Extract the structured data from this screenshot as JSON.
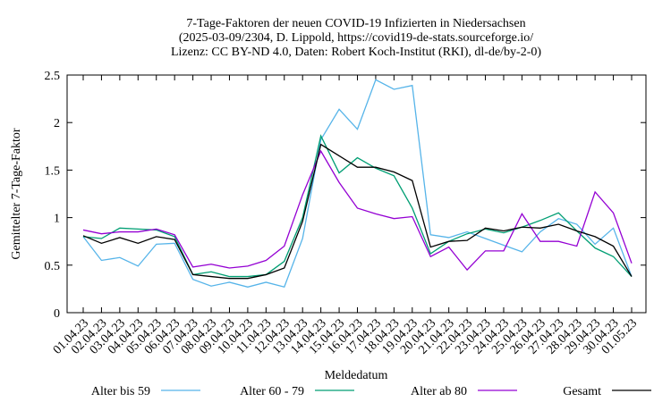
{
  "chart_data": {
    "type": "line",
    "title": [
      "7-Tage-Faktoren der neuen COVID-19 Infizierten in Niedersachsen",
      "(2025-03-09/2304, D. Lippold, https://covid19-de-stats.sourceforge.io/",
      "Lizenz: CC BY-ND 4.0, Daten: Robert Koch-Institut (RKI), dl-de/by-2-0)"
    ],
    "x_label": "Meldedatum",
    "y_label": "Gemittelter 7-Tage-Faktor",
    "categories": [
      "01.04.23",
      "02.04.23",
      "03.04.23",
      "04.04.23",
      "05.04.23",
      "06.04.23",
      "07.04.23",
      "08.04.23",
      "09.04.23",
      "10.04.23",
      "11.04.23",
      "12.04.23",
      "13.04.23",
      "14.04.23",
      "15.04.23",
      "16.04.23",
      "17.04.23",
      "18.04.23",
      "19.04.23",
      "20.04.23",
      "21.04.23",
      "22.04.23",
      "23.04.23",
      "24.04.23",
      "25.04.23",
      "26.04.23",
      "27.04.23",
      "28.04.23",
      "29.04.23",
      "30.04.23",
      "01.05.23"
    ],
    "series": [
      {
        "name": "Alter bis 59",
        "color": "#56b4e9",
        "values": [
          0.8,
          0.55,
          0.58,
          0.49,
          0.72,
          0.73,
          0.35,
          0.28,
          0.32,
          0.27,
          0.32,
          0.27,
          0.78,
          1.82,
          2.14,
          1.93,
          2.45,
          2.35,
          2.39,
          0.82,
          0.79,
          0.85,
          0.78,
          0.71,
          0.64,
          0.85,
          0.99,
          0.93,
          0.72,
          0.89,
          0.38
        ]
      },
      {
        "name": "Alter 60 - 79",
        "color": "#009e73",
        "values": [
          0.8,
          0.78,
          0.89,
          0.88,
          0.87,
          0.8,
          0.4,
          0.43,
          0.38,
          0.38,
          0.4,
          0.54,
          1.0,
          1.86,
          1.47,
          1.63,
          1.52,
          1.44,
          1.1,
          0.62,
          0.75,
          0.83,
          0.88,
          0.84,
          0.9,
          0.97,
          1.05,
          0.86,
          0.68,
          0.59,
          0.38
        ]
      },
      {
        "name": "Alter ab 80",
        "color": "#9400d3",
        "values": [
          0.87,
          0.83,
          0.85,
          0.85,
          0.88,
          0.82,
          0.48,
          0.51,
          0.47,
          0.49,
          0.55,
          0.7,
          1.24,
          1.7,
          1.37,
          1.1,
          1.04,
          0.99,
          1.01,
          0.59,
          0.69,
          0.45,
          0.65,
          0.65,
          1.04,
          0.75,
          0.75,
          0.7,
          1.27,
          1.05,
          0.52
        ]
      },
      {
        "name": "Gesamt",
        "color": "#000000",
        "values": [
          0.81,
          0.73,
          0.79,
          0.73,
          0.8,
          0.77,
          0.4,
          0.38,
          0.36,
          0.36,
          0.4,
          0.47,
          0.96,
          1.77,
          1.65,
          1.53,
          1.53,
          1.48,
          1.39,
          0.69,
          0.75,
          0.76,
          0.89,
          0.86,
          0.9,
          0.89,
          0.93,
          0.86,
          0.8,
          0.7,
          0.38
        ]
      }
    ],
    "ylim": [
      0,
      2.5
    ],
    "yticks": [
      0,
      0.5,
      1,
      1.5,
      2,
      2.5
    ]
  }
}
